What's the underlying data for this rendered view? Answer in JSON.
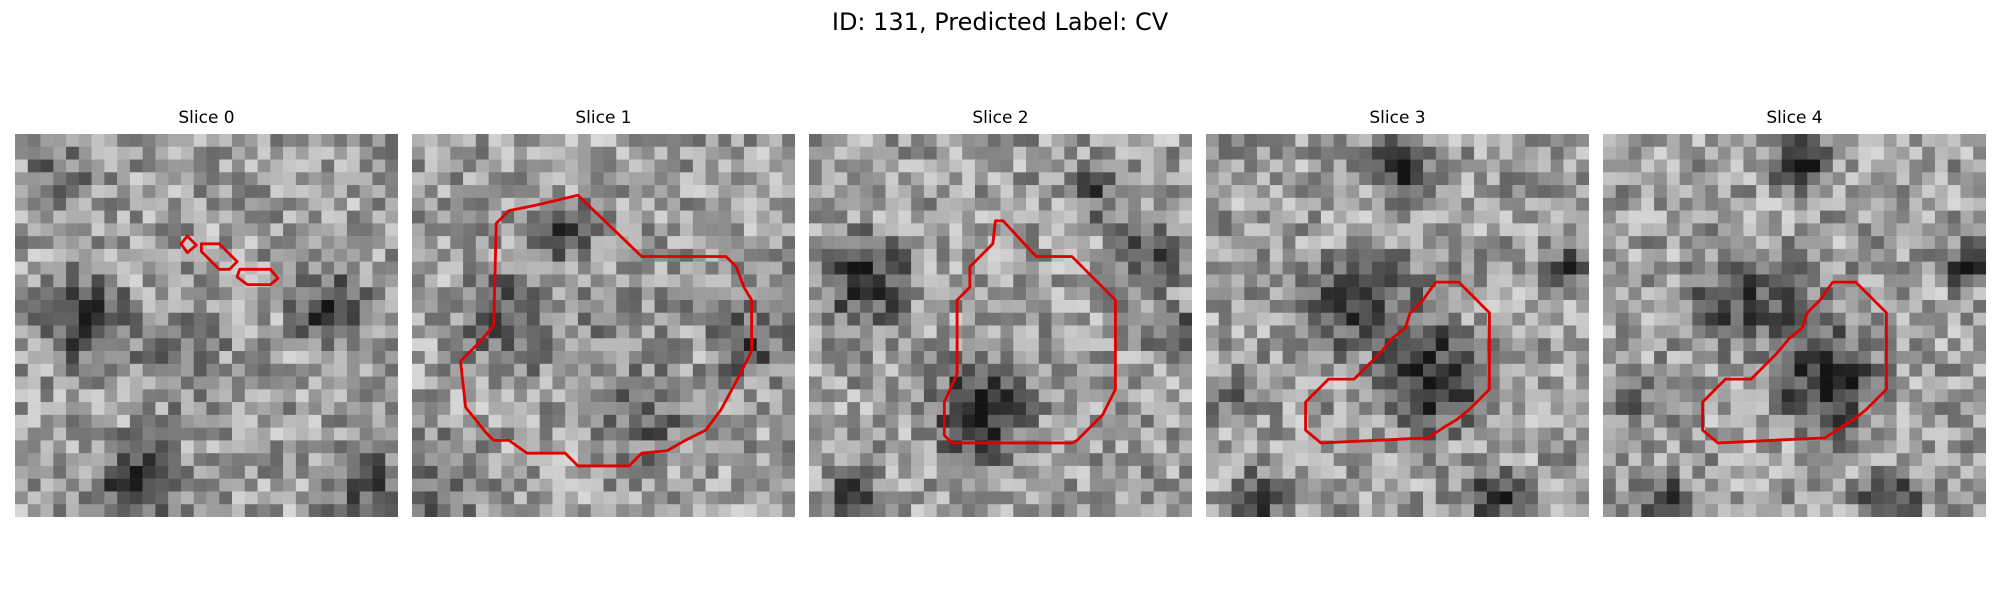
{
  "figure": {
    "title": "ID: 131, Predicted Label: CV",
    "contour_color": "#e00000",
    "image_colormap": "gray"
  },
  "slices": [
    {
      "title": "Slice 0"
    },
    {
      "title": "Slice 1"
    },
    {
      "title": "Slice 2"
    },
    {
      "title": "Slice 3"
    },
    {
      "title": "Slice 4"
    }
  ]
}
